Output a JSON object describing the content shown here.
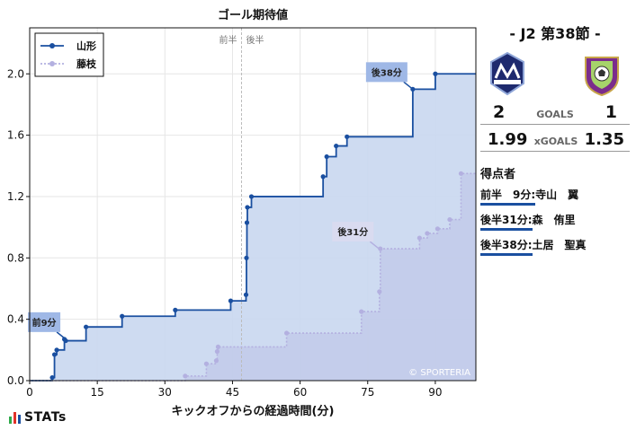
{
  "chart_data": {
    "type": "line",
    "title": "ゴール期待値",
    "xlabel": "キックオフからの経過時間(分)",
    "ylabel": "",
    "xlim": [
      0,
      99
    ],
    "ylim": [
      0,
      2.3
    ],
    "xticks": [
      0,
      15,
      30,
      45,
      60,
      75,
      90
    ],
    "yticks": [
      0.0,
      0.4,
      0.8,
      1.2,
      1.6,
      2.0
    ],
    "half_labels": [
      "前半",
      "後半"
    ],
    "half_line_x": 47,
    "grid": true,
    "legend_position": "top-left",
    "series": [
      {
        "name": "山形",
        "style": "solid",
        "color": "#1a4fa0",
        "fill": "#c9d7f0",
        "points": [
          [
            0,
            0
          ],
          [
            5,
            0.02
          ],
          [
            5.5,
            0.17
          ],
          [
            6,
            0.2
          ],
          [
            7.7,
            0.27
          ],
          [
            8,
            0.26
          ],
          [
            12.5,
            0.35
          ],
          [
            20.5,
            0.42
          ],
          [
            32.3,
            0.46
          ],
          [
            44.6,
            0.52
          ],
          [
            48,
            0.56
          ],
          [
            48.1,
            0.8
          ],
          [
            48.2,
            1.03
          ],
          [
            48.3,
            1.13
          ],
          [
            49.2,
            1.2
          ],
          [
            65.1,
            1.33
          ],
          [
            65.9,
            1.46
          ],
          [
            68,
            1.53
          ],
          [
            70.4,
            1.59
          ],
          [
            85,
            1.9
          ],
          [
            90,
            2.0
          ],
          [
            99,
            2.0
          ]
        ]
      },
      {
        "name": "藤枝",
        "style": "dotted",
        "color": "#b3b0e0",
        "fill": "#c0c8e8",
        "points": [
          [
            0,
            0
          ],
          [
            34.5,
            0.03
          ],
          [
            39.2,
            0.11
          ],
          [
            41.4,
            0.13
          ],
          [
            41.6,
            0.19
          ],
          [
            41.8,
            0.22
          ],
          [
            57,
            0.31
          ],
          [
            73.6,
            0.45
          ],
          [
            77.6,
            0.58
          ],
          [
            77.8,
            0.86
          ],
          [
            86.5,
            0.93
          ],
          [
            88.2,
            0.96
          ],
          [
            90.5,
            0.99
          ],
          [
            93.2,
            1.05
          ],
          [
            95.7,
            1.35
          ],
          [
            99,
            1.35
          ]
        ]
      }
    ],
    "annotations": [
      {
        "label": "前9分",
        "x": 8,
        "y": 0.27,
        "team": "山形"
      },
      {
        "label": "後31分",
        "x": 77.5,
        "y": 0.86,
        "team": "藤枝"
      },
      {
        "label": "後38分",
        "x": 85,
        "y": 1.9,
        "team": "山形"
      }
    ]
  },
  "copyright": "© SPORTERIA",
  "match": {
    "title": "- J2 第38節 -",
    "home": {
      "name": "山形",
      "logo_text": "Montedio",
      "goals": "2",
      "xg": "1.99",
      "color": "#1a1a66"
    },
    "away": {
      "name": "藤枝",
      "logo_text": "FUJIEDA",
      "goals": "1",
      "xg": "1.35",
      "color": "#7b2c8c"
    },
    "goals_label": "GOALS",
    "xg_label": "xGOALS"
  },
  "scorers": {
    "heading": "得点者",
    "list": [
      {
        "time": "前半　9分:",
        "name": "寺山　翼"
      },
      {
        "time": "後半31分:",
        "name": "森　侑里"
      },
      {
        "time": "後半38分:",
        "name": "土居　聖真"
      }
    ]
  },
  "brand": {
    "name": "STATs",
    "bar_colors": [
      "#2eaa4a",
      "#e0322a",
      "#1a4fa0"
    ]
  }
}
